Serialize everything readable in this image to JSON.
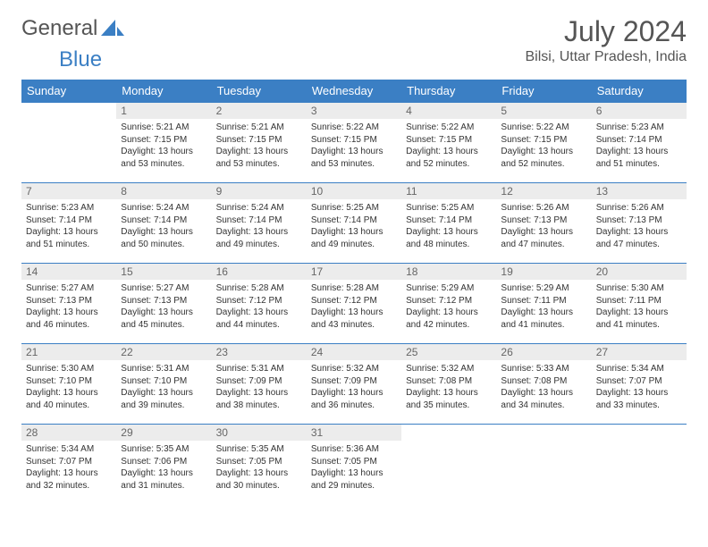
{
  "brand": {
    "part1": "General",
    "part2": "Blue"
  },
  "title": "July 2024",
  "location": "Bilsi, Uttar Pradesh, India",
  "colors": {
    "header_bg": "#3b7fc4",
    "header_text": "#ffffff",
    "daynum_bg": "#ececec",
    "daynum_text": "#666666",
    "body_text": "#333333",
    "border": "#3b7fc4",
    "page_bg": "#ffffff",
    "title_color": "#555555"
  },
  "weekdays": [
    "Sunday",
    "Monday",
    "Tuesday",
    "Wednesday",
    "Thursday",
    "Friday",
    "Saturday"
  ],
  "layout": {
    "first_weekday_index": 1,
    "total_days": 31
  },
  "days": [
    {
      "n": 1,
      "sunrise": "5:21 AM",
      "sunset": "7:15 PM",
      "daylight": "13 hours and 53 minutes."
    },
    {
      "n": 2,
      "sunrise": "5:21 AM",
      "sunset": "7:15 PM",
      "daylight": "13 hours and 53 minutes."
    },
    {
      "n": 3,
      "sunrise": "5:22 AM",
      "sunset": "7:15 PM",
      "daylight": "13 hours and 53 minutes."
    },
    {
      "n": 4,
      "sunrise": "5:22 AM",
      "sunset": "7:15 PM",
      "daylight": "13 hours and 52 minutes."
    },
    {
      "n": 5,
      "sunrise": "5:22 AM",
      "sunset": "7:15 PM",
      "daylight": "13 hours and 52 minutes."
    },
    {
      "n": 6,
      "sunrise": "5:23 AM",
      "sunset": "7:14 PM",
      "daylight": "13 hours and 51 minutes."
    },
    {
      "n": 7,
      "sunrise": "5:23 AM",
      "sunset": "7:14 PM",
      "daylight": "13 hours and 51 minutes."
    },
    {
      "n": 8,
      "sunrise": "5:24 AM",
      "sunset": "7:14 PM",
      "daylight": "13 hours and 50 minutes."
    },
    {
      "n": 9,
      "sunrise": "5:24 AM",
      "sunset": "7:14 PM",
      "daylight": "13 hours and 49 minutes."
    },
    {
      "n": 10,
      "sunrise": "5:25 AM",
      "sunset": "7:14 PM",
      "daylight": "13 hours and 49 minutes."
    },
    {
      "n": 11,
      "sunrise": "5:25 AM",
      "sunset": "7:14 PM",
      "daylight": "13 hours and 48 minutes."
    },
    {
      "n": 12,
      "sunrise": "5:26 AM",
      "sunset": "7:13 PM",
      "daylight": "13 hours and 47 minutes."
    },
    {
      "n": 13,
      "sunrise": "5:26 AM",
      "sunset": "7:13 PM",
      "daylight": "13 hours and 47 minutes."
    },
    {
      "n": 14,
      "sunrise": "5:27 AM",
      "sunset": "7:13 PM",
      "daylight": "13 hours and 46 minutes."
    },
    {
      "n": 15,
      "sunrise": "5:27 AM",
      "sunset": "7:13 PM",
      "daylight": "13 hours and 45 minutes."
    },
    {
      "n": 16,
      "sunrise": "5:28 AM",
      "sunset": "7:12 PM",
      "daylight": "13 hours and 44 minutes."
    },
    {
      "n": 17,
      "sunrise": "5:28 AM",
      "sunset": "7:12 PM",
      "daylight": "13 hours and 43 minutes."
    },
    {
      "n": 18,
      "sunrise": "5:29 AM",
      "sunset": "7:12 PM",
      "daylight": "13 hours and 42 minutes."
    },
    {
      "n": 19,
      "sunrise": "5:29 AM",
      "sunset": "7:11 PM",
      "daylight": "13 hours and 41 minutes."
    },
    {
      "n": 20,
      "sunrise": "5:30 AM",
      "sunset": "7:11 PM",
      "daylight": "13 hours and 41 minutes."
    },
    {
      "n": 21,
      "sunrise": "5:30 AM",
      "sunset": "7:10 PM",
      "daylight": "13 hours and 40 minutes."
    },
    {
      "n": 22,
      "sunrise": "5:31 AM",
      "sunset": "7:10 PM",
      "daylight": "13 hours and 39 minutes."
    },
    {
      "n": 23,
      "sunrise": "5:31 AM",
      "sunset": "7:09 PM",
      "daylight": "13 hours and 38 minutes."
    },
    {
      "n": 24,
      "sunrise": "5:32 AM",
      "sunset": "7:09 PM",
      "daylight": "13 hours and 36 minutes."
    },
    {
      "n": 25,
      "sunrise": "5:32 AM",
      "sunset": "7:08 PM",
      "daylight": "13 hours and 35 minutes."
    },
    {
      "n": 26,
      "sunrise": "5:33 AM",
      "sunset": "7:08 PM",
      "daylight": "13 hours and 34 minutes."
    },
    {
      "n": 27,
      "sunrise": "5:34 AM",
      "sunset": "7:07 PM",
      "daylight": "13 hours and 33 minutes."
    },
    {
      "n": 28,
      "sunrise": "5:34 AM",
      "sunset": "7:07 PM",
      "daylight": "13 hours and 32 minutes."
    },
    {
      "n": 29,
      "sunrise": "5:35 AM",
      "sunset": "7:06 PM",
      "daylight": "13 hours and 31 minutes."
    },
    {
      "n": 30,
      "sunrise": "5:35 AM",
      "sunset": "7:05 PM",
      "daylight": "13 hours and 30 minutes."
    },
    {
      "n": 31,
      "sunrise": "5:36 AM",
      "sunset": "7:05 PM",
      "daylight": "13 hours and 29 minutes."
    }
  ],
  "labels": {
    "sunrise": "Sunrise:",
    "sunset": "Sunset:",
    "daylight": "Daylight:"
  }
}
